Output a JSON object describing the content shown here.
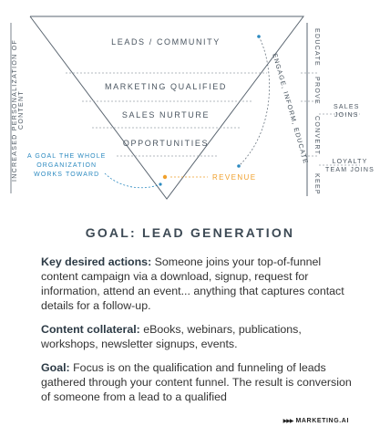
{
  "funnel": {
    "stages": [
      "LEADS / COMMUNITY",
      "MARKETING QUALIFIED",
      "SALES NURTURE",
      "OPPORTUNITIES"
    ],
    "left_axis": "INCREASED PERSONALIZATION OF CONTENT",
    "right_axis": [
      "EDUCATE",
      "PROVE",
      "CONVERT",
      "KEEP"
    ],
    "side_labels": {
      "sales_joins": [
        "SALES",
        "JOINS"
      ],
      "loyalty": [
        "LOYALTY",
        "TEAM JOINS"
      ]
    },
    "goal_note": [
      "A GOAL THE WHOLE",
      "ORGANIZATION",
      "WORKS TOWARD"
    ],
    "revenue": "REVENUE",
    "engage": "ENGAGE, INFORM, EDUCATE",
    "colors": {
      "accent_orange": "#f0a02c",
      "accent_blue": "#2c8ac0",
      "line": "#5a6570"
    }
  },
  "heading": "GOAL: LEAD GENERATION",
  "paragraphs": [
    {
      "label": "Key desired actions:",
      "text": " Someone joins your top-of-funnel content campaign via a download, signup, request for information, attend an event... anything that captures contact details for a follow-up."
    },
    {
      "label": "Content collateral:",
      "text": " eBooks, webinars, publications, workshops, newsletter signups, events."
    },
    {
      "label": "Goal:",
      "text": " Focus is on the qualification and funneling of leads gathered through your content funnel. The result is conversion of someone from a lead to a qualified"
    }
  ],
  "logo": {
    "mark": "▶▶▶",
    "text": "MARKETING.AI"
  }
}
